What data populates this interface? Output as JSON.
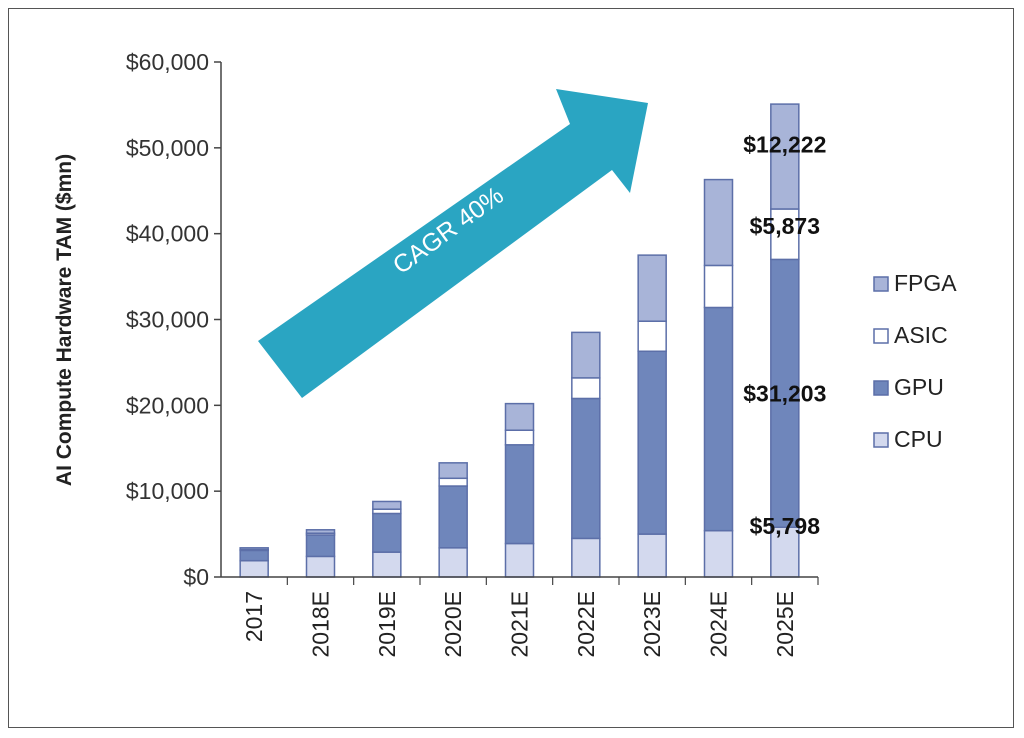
{
  "chart_data": {
    "type": "bar",
    "stacked": true,
    "ylabel": "AI Compute Hardware TAM ($mn)",
    "xlabel": "",
    "ylim": [
      0,
      60000
    ],
    "yticks": [
      0,
      10000,
      20000,
      30000,
      40000,
      50000,
      60000
    ],
    "ytick_labels": [
      "$0",
      "$10,000",
      "$20,000",
      "$30,000",
      "$40,000",
      "$50,000",
      "$60,000"
    ],
    "categories": [
      "2017",
      "2018E",
      "2019E",
      "2020E",
      "2021E",
      "2022E",
      "2023E",
      "2024E",
      "2025E"
    ],
    "series": [
      {
        "name": "CPU",
        "color": "#d3d9ee",
        "values": [
          1900,
          2400,
          2900,
          3400,
          3900,
          4500,
          5000,
          5400,
          5798
        ]
      },
      {
        "name": "GPU",
        "color": "#6f86bb",
        "values": [
          1200,
          2500,
          4500,
          7200,
          11500,
          16300,
          21300,
          26000,
          31203
        ]
      },
      {
        "name": "ASIC",
        "color": "#ffffff",
        "values": [
          100,
          200,
          500,
          900,
          1700,
          2400,
          3500,
          4900,
          5873
        ]
      },
      {
        "name": "FPGA",
        "color": "#a8b4d8",
        "values": [
          200,
          400,
          900,
          1800,
          3100,
          5300,
          7700,
          10000,
          12222
        ]
      }
    ],
    "legend": {
      "position": "right",
      "order": [
        "FPGA",
        "ASIC",
        "GPU",
        "CPU"
      ]
    },
    "annotations": [
      {
        "text": "$12,222",
        "series": "FPGA",
        "category": "2025E"
      },
      {
        "text": "$5,873",
        "series": "ASIC",
        "category": "2025E"
      },
      {
        "text": "$31,203",
        "series": "GPU",
        "category": "2025E"
      },
      {
        "text": "$5,798",
        "series": "CPU",
        "category": "2025E"
      }
    ],
    "arrow_label": "CAGR 40%",
    "arrow_color": "#2aa5c2"
  }
}
